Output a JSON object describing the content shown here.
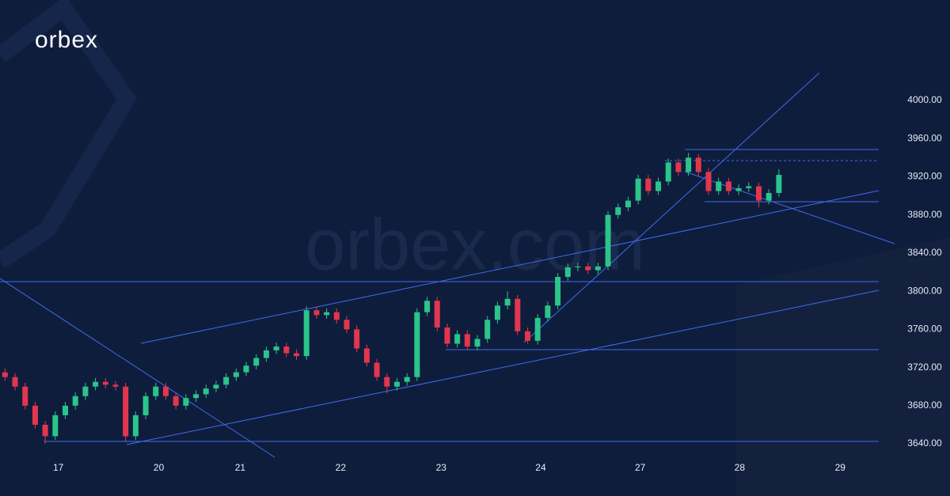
{
  "chart_data": {
    "type": "candlestick",
    "logo": "orbex",
    "watermark": "orbex.com",
    "up_color": "#2bc48a",
    "down_color": "#e2364f",
    "xticks": [
      {
        "value": 5.3,
        "label": "17"
      },
      {
        "value": 15.3,
        "label": "20"
      },
      {
        "value": 23.4,
        "label": "21"
      },
      {
        "value": 33.4,
        "label": "22"
      },
      {
        "value": 43.4,
        "label": "23"
      },
      {
        "value": 53.3,
        "label": "24"
      },
      {
        "value": 63.2,
        "label": "27"
      },
      {
        "value": 73.1,
        "label": "28"
      },
      {
        "value": 83.1,
        "label": "29"
      }
    ],
    "xlim": [
      -0.5,
      89.3
    ],
    "ylim": [
      3624.3,
      4105.3
    ],
    "yticks": [
      {
        "value": 3640,
        "label": "3640.00"
      },
      {
        "value": 3680,
        "label": "3680.00"
      },
      {
        "value": 3720,
        "label": "3720.00"
      },
      {
        "value": 3760,
        "label": "3760.00"
      },
      {
        "value": 3800,
        "label": "3800.00"
      },
      {
        "value": 3840,
        "label": "3840.00"
      },
      {
        "value": 3880,
        "label": "3880.00"
      },
      {
        "value": 3920,
        "label": "3920.00"
      },
      {
        "value": 3960,
        "label": "3960.00"
      },
      {
        "value": 4000,
        "label": "4000.00"
      }
    ],
    "open": [
      3715,
      3710,
      3700,
      3680,
      3660,
      3648,
      3670,
      3680,
      3690,
      3700,
      3705,
      3702,
      3700,
      3648,
      3670,
      3690,
      3700,
      3690,
      3680,
      3688,
      3692,
      3698,
      3702,
      3710,
      3715,
      3722,
      3730,
      3738,
      3742,
      3735,
      3732,
      3780,
      3775,
      3778,
      3770,
      3760,
      3740,
      3725,
      3710,
      3700,
      3705,
      3710,
      3778,
      3790,
      3762,
      3745,
      3755,
      3742,
      3750,
      3770,
      3785,
      3792,
      3758,
      3748,
      3772,
      3785,
      3815,
      3825,
      3826,
      3822,
      3826,
      3880,
      3888,
      3895,
      3918,
      3905,
      3915,
      3935,
      3925,
      3940,
      3925,
      3905,
      3915,
      3905,
      3908,
      3910,
      3895,
      3903
    ],
    "high": [
      3719,
      3714,
      3704,
      3684,
      3664,
      3674,
      3684,
      3694,
      3704,
      3709,
      3709,
      3706,
      3704,
      3674,
      3694,
      3704,
      3704,
      3694,
      3692,
      3696,
      3702,
      3706,
      3714,
      3719,
      3726,
      3734,
      3742,
      3746,
      3746,
      3739,
      3784,
      3784,
      3782,
      3782,
      3774,
      3764,
      3744,
      3729,
      3714,
      3709,
      3714,
      3782,
      3794,
      3794,
      3766,
      3759,
      3759,
      3754,
      3774,
      3789,
      3800,
      3796,
      3762,
      3776,
      3789,
      3819,
      3829,
      3830,
      3830,
      3830,
      3884,
      3892,
      3899,
      3922,
      3922,
      3919,
      3939,
      3939,
      3945,
      3944,
      3929,
      3919,
      3919,
      3912,
      3914,
      3914,
      3907,
      3928
    ],
    "low": [
      3706,
      3696,
      3676,
      3656,
      3640,
      3644,
      3666,
      3676,
      3686,
      3696,
      3698,
      3696,
      3642,
      3644,
      3666,
      3686,
      3686,
      3676,
      3676,
      3684,
      3688,
      3694,
      3698,
      3706,
      3711,
      3718,
      3726,
      3734,
      3731,
      3728,
      3728,
      3771,
      3771,
      3766,
      3756,
      3736,
      3721,
      3706,
      3693,
      3696,
      3701,
      3706,
      3774,
      3758,
      3741,
      3741,
      3738,
      3738,
      3746,
      3766,
      3781,
      3754,
      3745,
      3744,
      3768,
      3781,
      3811,
      3821,
      3818,
      3818,
      3822,
      3876,
      3884,
      3891,
      3901,
      3901,
      3911,
      3921,
      3921,
      3921,
      3901,
      3901,
      3901,
      3901,
      3904,
      3888,
      3891,
      3899
    ],
    "close": [
      3710,
      3700,
      3680,
      3660,
      3648,
      3670,
      3680,
      3690,
      3700,
      3705,
      3702,
      3700,
      3648,
      3670,
      3690,
      3700,
      3690,
      3680,
      3688,
      3692,
      3698,
      3702,
      3710,
      3715,
      3722,
      3730,
      3738,
      3742,
      3735,
      3732,
      3780,
      3775,
      3778,
      3770,
      3760,
      3740,
      3725,
      3710,
      3700,
      3705,
      3710,
      3778,
      3790,
      3762,
      3745,
      3755,
      3742,
      3750,
      3770,
      3785,
      3792,
      3758,
      3748,
      3772,
      3785,
      3815,
      3825,
      3826,
      3822,
      3826,
      3880,
      3888,
      3895,
      3918,
      3905,
      3915,
      3935,
      3925,
      3940,
      3925,
      3905,
      3915,
      3905,
      3908,
      3910,
      3895,
      3903,
      3922
    ]
  }
}
